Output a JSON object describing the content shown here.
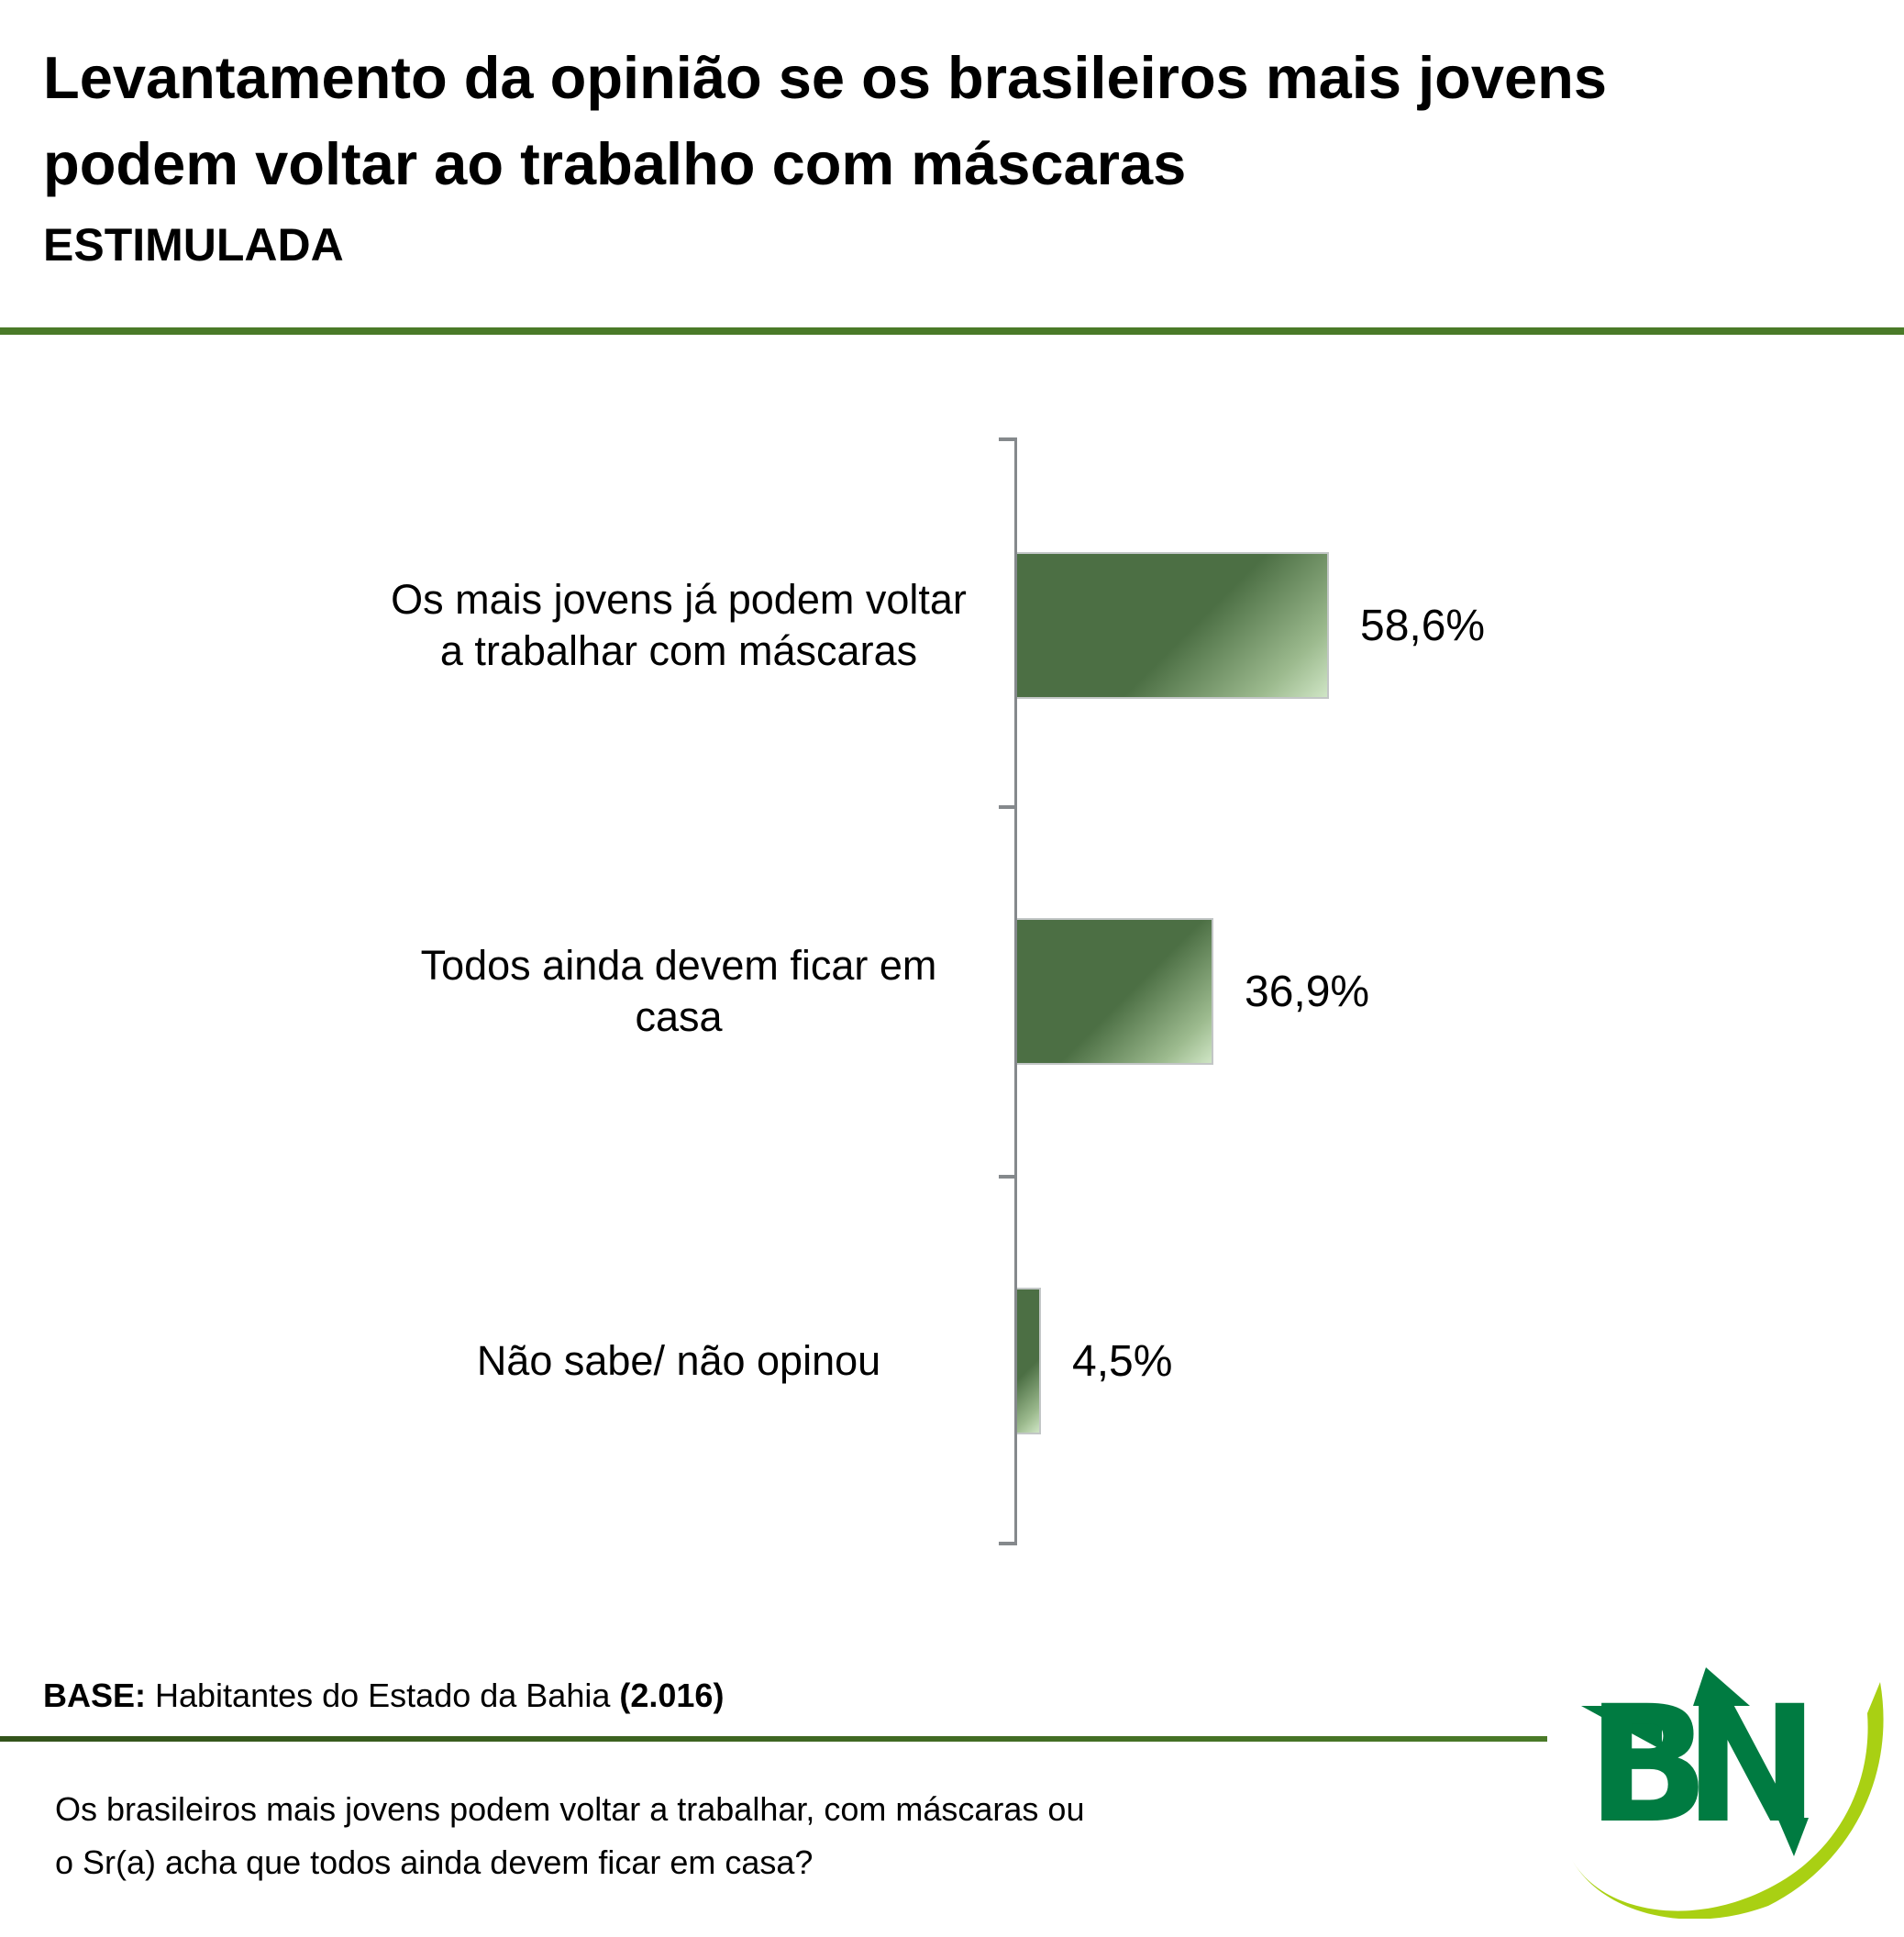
{
  "title": "Levantamento da opinião se os brasileiros mais jovens podem voltar ao trabalho com máscaras",
  "subtitle": "ESTIMULADA",
  "chart_data": {
    "type": "bar",
    "orientation": "horizontal",
    "title": "Levantamento da opinião se os brasileiros mais jovens podem voltar ao trabalho com máscaras — ESTIMULADA",
    "categories": [
      "Os mais jovens já podem voltar a trabalhar com máscaras",
      "Todos ainda devem ficar em casa",
      "Não sabe/ não opinou"
    ],
    "values": [
      58.6,
      36.9,
      4.5
    ],
    "value_labels": [
      "58,6%",
      "36,9%",
      "4,5%"
    ],
    "xlabel": "",
    "ylabel": "",
    "xlim": [
      0,
      100
    ],
    "grid": false,
    "legend": "none",
    "bar_color_dark": "#4c6f44",
    "bar_color_light": "#cfe5c5",
    "axis_color": "#85898c"
  },
  "footer": {
    "base_label": "BASE:",
    "base_text": "Habitantes do Estado da Bahia",
    "base_count": "(2.016)",
    "question_lines": [
      "Os brasileiros mais jovens podem voltar a trabalhar, com máscaras ou",
      "o Sr(a) acha que todos ainda devem ficar em casa?"
    ]
  },
  "logo": {
    "text": "BN",
    "letters_color": "#007b41",
    "swoosh_color": "#a9d013"
  },
  "colors": {
    "rule_green": "#4a7a28",
    "background": "#ffffff",
    "text": "#000000"
  }
}
